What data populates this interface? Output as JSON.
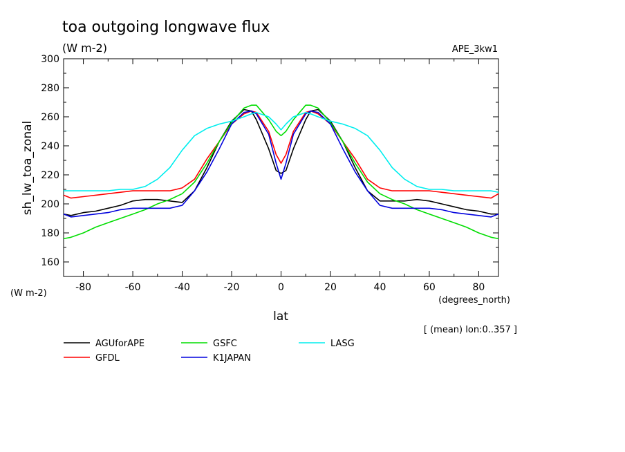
{
  "chart_data": {
    "type": "line",
    "title": "toa outgoing longwave flux",
    "subtitle": "(W m-2)",
    "experiment": "APE_3kw1",
    "ylabel": "sh_lw_toa_zonal",
    "yunits": "(W m-2)",
    "xlabel": "lat",
    "xunits": "(degrees_north)",
    "note": "[ (mean) lon:0..357 ]",
    "xlim": [
      -88,
      88
    ],
    "ylim": [
      150,
      300
    ],
    "xticks": [
      -80,
      -60,
      -40,
      -20,
      0,
      20,
      40,
      60,
      80
    ],
    "yticks": [
      160,
      180,
      200,
      220,
      240,
      260,
      280,
      300
    ],
    "x": [
      -88,
      -85,
      -80,
      -75,
      -70,
      -65,
      -60,
      -55,
      -50,
      -45,
      -40,
      -35,
      -30,
      -25,
      -20,
      -15,
      -12,
      -10,
      -5,
      -2,
      0,
      2,
      5,
      10,
      12,
      15,
      20,
      25,
      30,
      35,
      40,
      45,
      50,
      55,
      60,
      65,
      70,
      75,
      80,
      85,
      88
    ],
    "series": [
      {
        "name": "AGUforAPE",
        "color": "#000000",
        "values": [
          193,
          192,
          194,
          195,
          197,
          199,
          202,
          203,
          203,
          202,
          201,
          209,
          225,
          243,
          257,
          265,
          264,
          258,
          238,
          223,
          221,
          223,
          238,
          258,
          264,
          265,
          257,
          243,
          225,
          209,
          202,
          202,
          202,
          203,
          202,
          200,
          198,
          196,
          195,
          193,
          193
        ]
      },
      {
        "name": "GFDL",
        "color": "#ff0000",
        "values": [
          206,
          204,
          205,
          206,
          207,
          208,
          209,
          209,
          209,
          209,
          211,
          217,
          231,
          243,
          255,
          262,
          264,
          263,
          250,
          234,
          228,
          234,
          250,
          263,
          264,
          262,
          255,
          243,
          231,
          217,
          211,
          209,
          209,
          209,
          209,
          208,
          207,
          206,
          205,
          204,
          207
        ]
      },
      {
        "name": "GSFC",
        "color": "#00dd00",
        "values": [
          176,
          177,
          180,
          184,
          187,
          190,
          193,
          196,
          200,
          203,
          207,
          215,
          228,
          243,
          256,
          266,
          268,
          268,
          258,
          250,
          247,
          250,
          258,
          268,
          268,
          266,
          256,
          243,
          228,
          215,
          207,
          203,
          200,
          196,
          193,
          190,
          187,
          184,
          180,
          177,
          176
        ]
      },
      {
        "name": "K1JAPAN",
        "color": "#0000dd",
        "values": [
          193,
          191,
          192,
          193,
          194,
          196,
          197,
          197,
          197,
          197,
          199,
          209,
          222,
          238,
          255,
          263,
          264,
          262,
          248,
          228,
          217,
          228,
          248,
          262,
          264,
          263,
          255,
          238,
          222,
          209,
          199,
          197,
          197,
          197,
          197,
          196,
          194,
          193,
          192,
          191,
          193
        ]
      },
      {
        "name": "LASG",
        "color": "#00eeee",
        "values": [
          209,
          209,
          209,
          209,
          209,
          210,
          210,
          212,
          217,
          225,
          237,
          247,
          252,
          255,
          257,
          260,
          262,
          263,
          260,
          255,
          251,
          255,
          260,
          263,
          262,
          260,
          257,
          255,
          252,
          247,
          237,
          225,
          217,
          212,
          210,
          210,
          209,
          209,
          209,
          209,
          208
        ]
      }
    ]
  }
}
